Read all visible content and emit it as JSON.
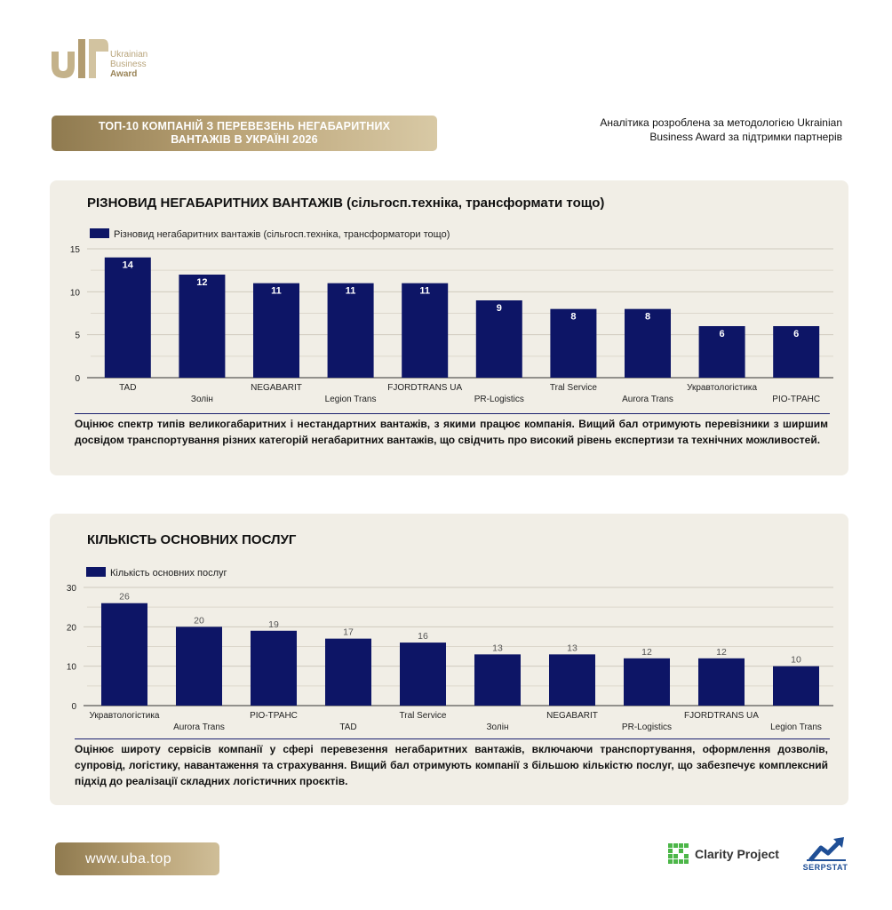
{
  "brand": {
    "line1": "Ukrainian",
    "line2": "Business",
    "line3": "Award",
    "gold_color": "#b9a275"
  },
  "header": {
    "title_line1": "ТОП-10 КОМПАНІЙ З ПЕРЕВЕЗЕНЬ НЕГАБАРИТНИХ",
    "title_line2": "ВАНТАЖІВ В УКРАЇНІ 2026",
    "credit_line1": "Аналітика розроблена за методологією Ukrainian",
    "credit_line2": "Business Award за підтримки партнерів"
  },
  "section1": {
    "title": "РІЗНОВИД НЕГАБАРИТНИХ ВАНТАЖІВ (сільгосп.техніка, трансформати тощо)",
    "description": "Оцінює спектр типів великогабаритних і нестандартних вантажів, з якими працює компанія. Вищий бал отримують перевізники з ширшим досвідом транспортування різних категорій негабаритних вантажів, що свідчить про високий рівень експертизи та технічних можливостей."
  },
  "section2": {
    "title": "КІЛЬКІСТЬ ОСНОВНИХ ПОСЛУГ",
    "description": "Оцінює широту сервісів компанії у сфері перевезення негабаритних вантажів, включаючи транспортування, оформлення дозволів, супровід, логістику, навантаження та страхування. Вищий бал отримують компанії з більшою кількістю послуг, що забезпечує комплексний підхід до реалізації складних логістичних проєктів."
  },
  "chart_data": [
    {
      "type": "bar",
      "categories": [
        "TAD",
        "Золін",
        "NEGABARIT",
        "Legion Trans",
        "FJORDTRANS UA",
        "PR-Logistics",
        "Tral Service",
        "Aurora Trans",
        "Укравтологістика",
        "РІО-ТРАНС"
      ],
      "series": [
        {
          "name": "Різновид негабаритних вантажів (сільгосп.техніка, трансформатори тощо)",
          "values": [
            14,
            12,
            11,
            11,
            11,
            9,
            8,
            8,
            6,
            6
          ],
          "color": "#0d1566"
        }
      ],
      "ylim": [
        0,
        15
      ],
      "yticks": [
        "0",
        "5",
        "10",
        "15"
      ],
      "grid": true,
      "legend": "top-left",
      "data_labels": "inside-top-white"
    },
    {
      "type": "bar",
      "categories": [
        "Укравтологістика",
        "Aurora Trans",
        "РІО-ТРАНС",
        "TAD",
        "Tral Service",
        "Золін",
        "NEGABARIT",
        "PR-Logistics",
        "FJORDTRANS UA",
        "Legion Trans"
      ],
      "series": [
        {
          "name": "Кількість основних послуг",
          "values": [
            26,
            20,
            19,
            17,
            16,
            13,
            13,
            12,
            12,
            10
          ],
          "color": "#0d1566"
        }
      ],
      "ylim": [
        0,
        30
      ],
      "yticks": [
        "0",
        "10",
        "20",
        "30"
      ],
      "grid": true,
      "legend": "top-left",
      "data_labels": "above-grey"
    }
  ],
  "footer": {
    "site": "www.uba.top",
    "partner1": "Clarity Project",
    "partner2": "SERPSTAT"
  }
}
